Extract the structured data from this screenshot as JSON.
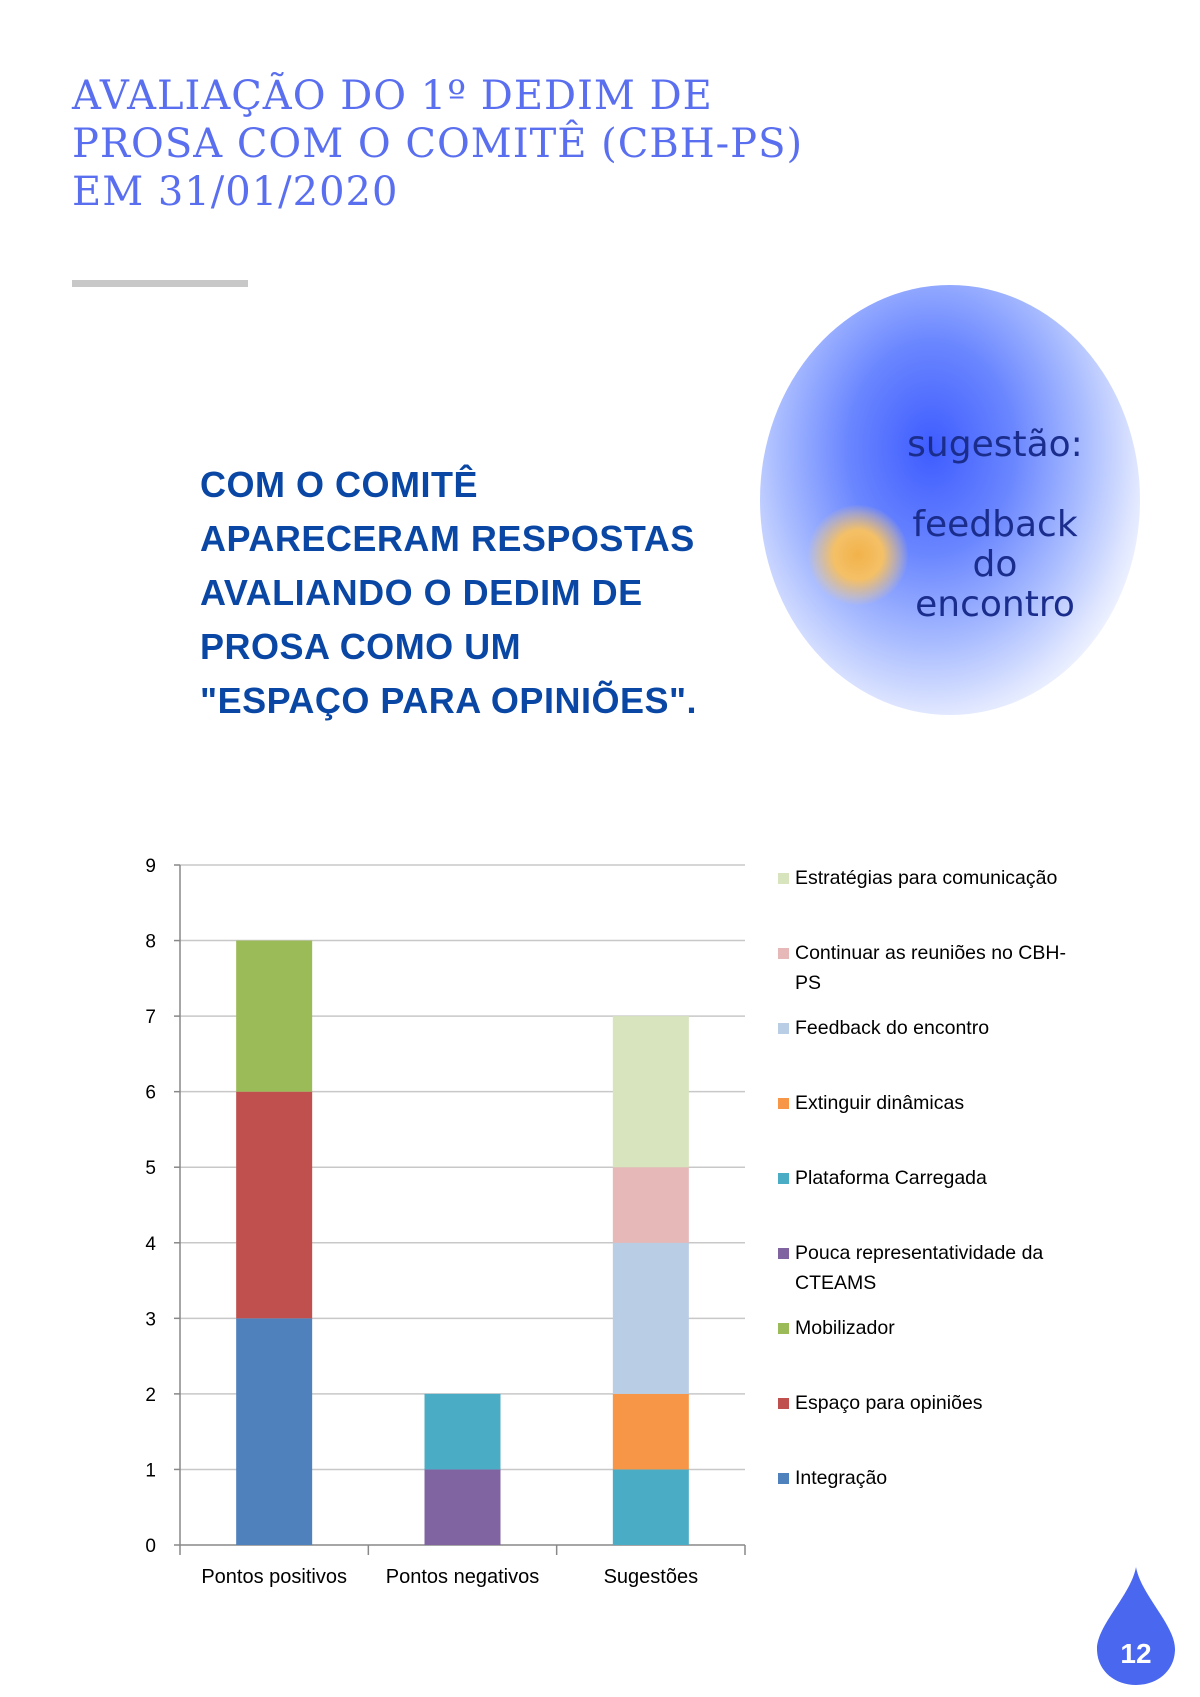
{
  "title_lines": [
    "AVALIAÇÃO DO 1º DEDIM DE",
    "PROSA COM O COMITÊ (CBH-PS)",
    "EM 31/01/2020"
  ],
  "headline_lines": [
    "COM O COMITÊ",
    "APARECERAM RESPOSTAS",
    "AVALIANDO O DEDIM DE",
    "PROSA COMO UM",
    "\"ESPAÇO PARA OPINIÕES\"."
  ],
  "bubble": {
    "label": "sugestão:",
    "text_lines": [
      "feedback",
      "do",
      "encontro"
    ]
  },
  "page_number": "12",
  "colors": {
    "title": "#5a6ff0",
    "headline": "#0a47a5",
    "drop": "#4a67f0"
  },
  "chart_data": {
    "type": "bar",
    "stacked": true,
    "categories": [
      "Pontos positivos",
      "Pontos negativos",
      "Sugestões"
    ],
    "ylim": [
      0,
      9
    ],
    "yticks": [
      0,
      1,
      2,
      3,
      4,
      5,
      6,
      7,
      8,
      9
    ],
    "grid": true,
    "legend_position": "right",
    "series": [
      {
        "name": "Integração",
        "color": "#4f81bd",
        "values": [
          3,
          0,
          0
        ]
      },
      {
        "name": "Espaço para opiniões",
        "color": "#c0504d",
        "values": [
          3,
          0,
          0
        ]
      },
      {
        "name": "Mobilizador",
        "color": "#9bbb59",
        "values": [
          2,
          0,
          0
        ]
      },
      {
        "name": "Pouca representatividade da CTEAMS",
        "color": "#8064a2",
        "values": [
          0,
          1,
          0
        ]
      },
      {
        "name": "Plataforma Carregada",
        "color": "#4bacc6",
        "values": [
          0,
          1,
          1
        ]
      },
      {
        "name": "Extinguir dinâmicas",
        "color": "#f79646",
        "values": [
          0,
          0,
          1
        ]
      },
      {
        "name": "Feedback do encontro",
        "color": "#b9cde5",
        "values": [
          0,
          0,
          2
        ]
      },
      {
        "name": "Continuar as reuniões no CBH-PS",
        "color": "#e6b9b8",
        "values": [
          0,
          0,
          1
        ]
      },
      {
        "name": "Estratégias para comunicação",
        "color": "#d7e4bd",
        "values": [
          0,
          0,
          2
        ]
      }
    ]
  }
}
